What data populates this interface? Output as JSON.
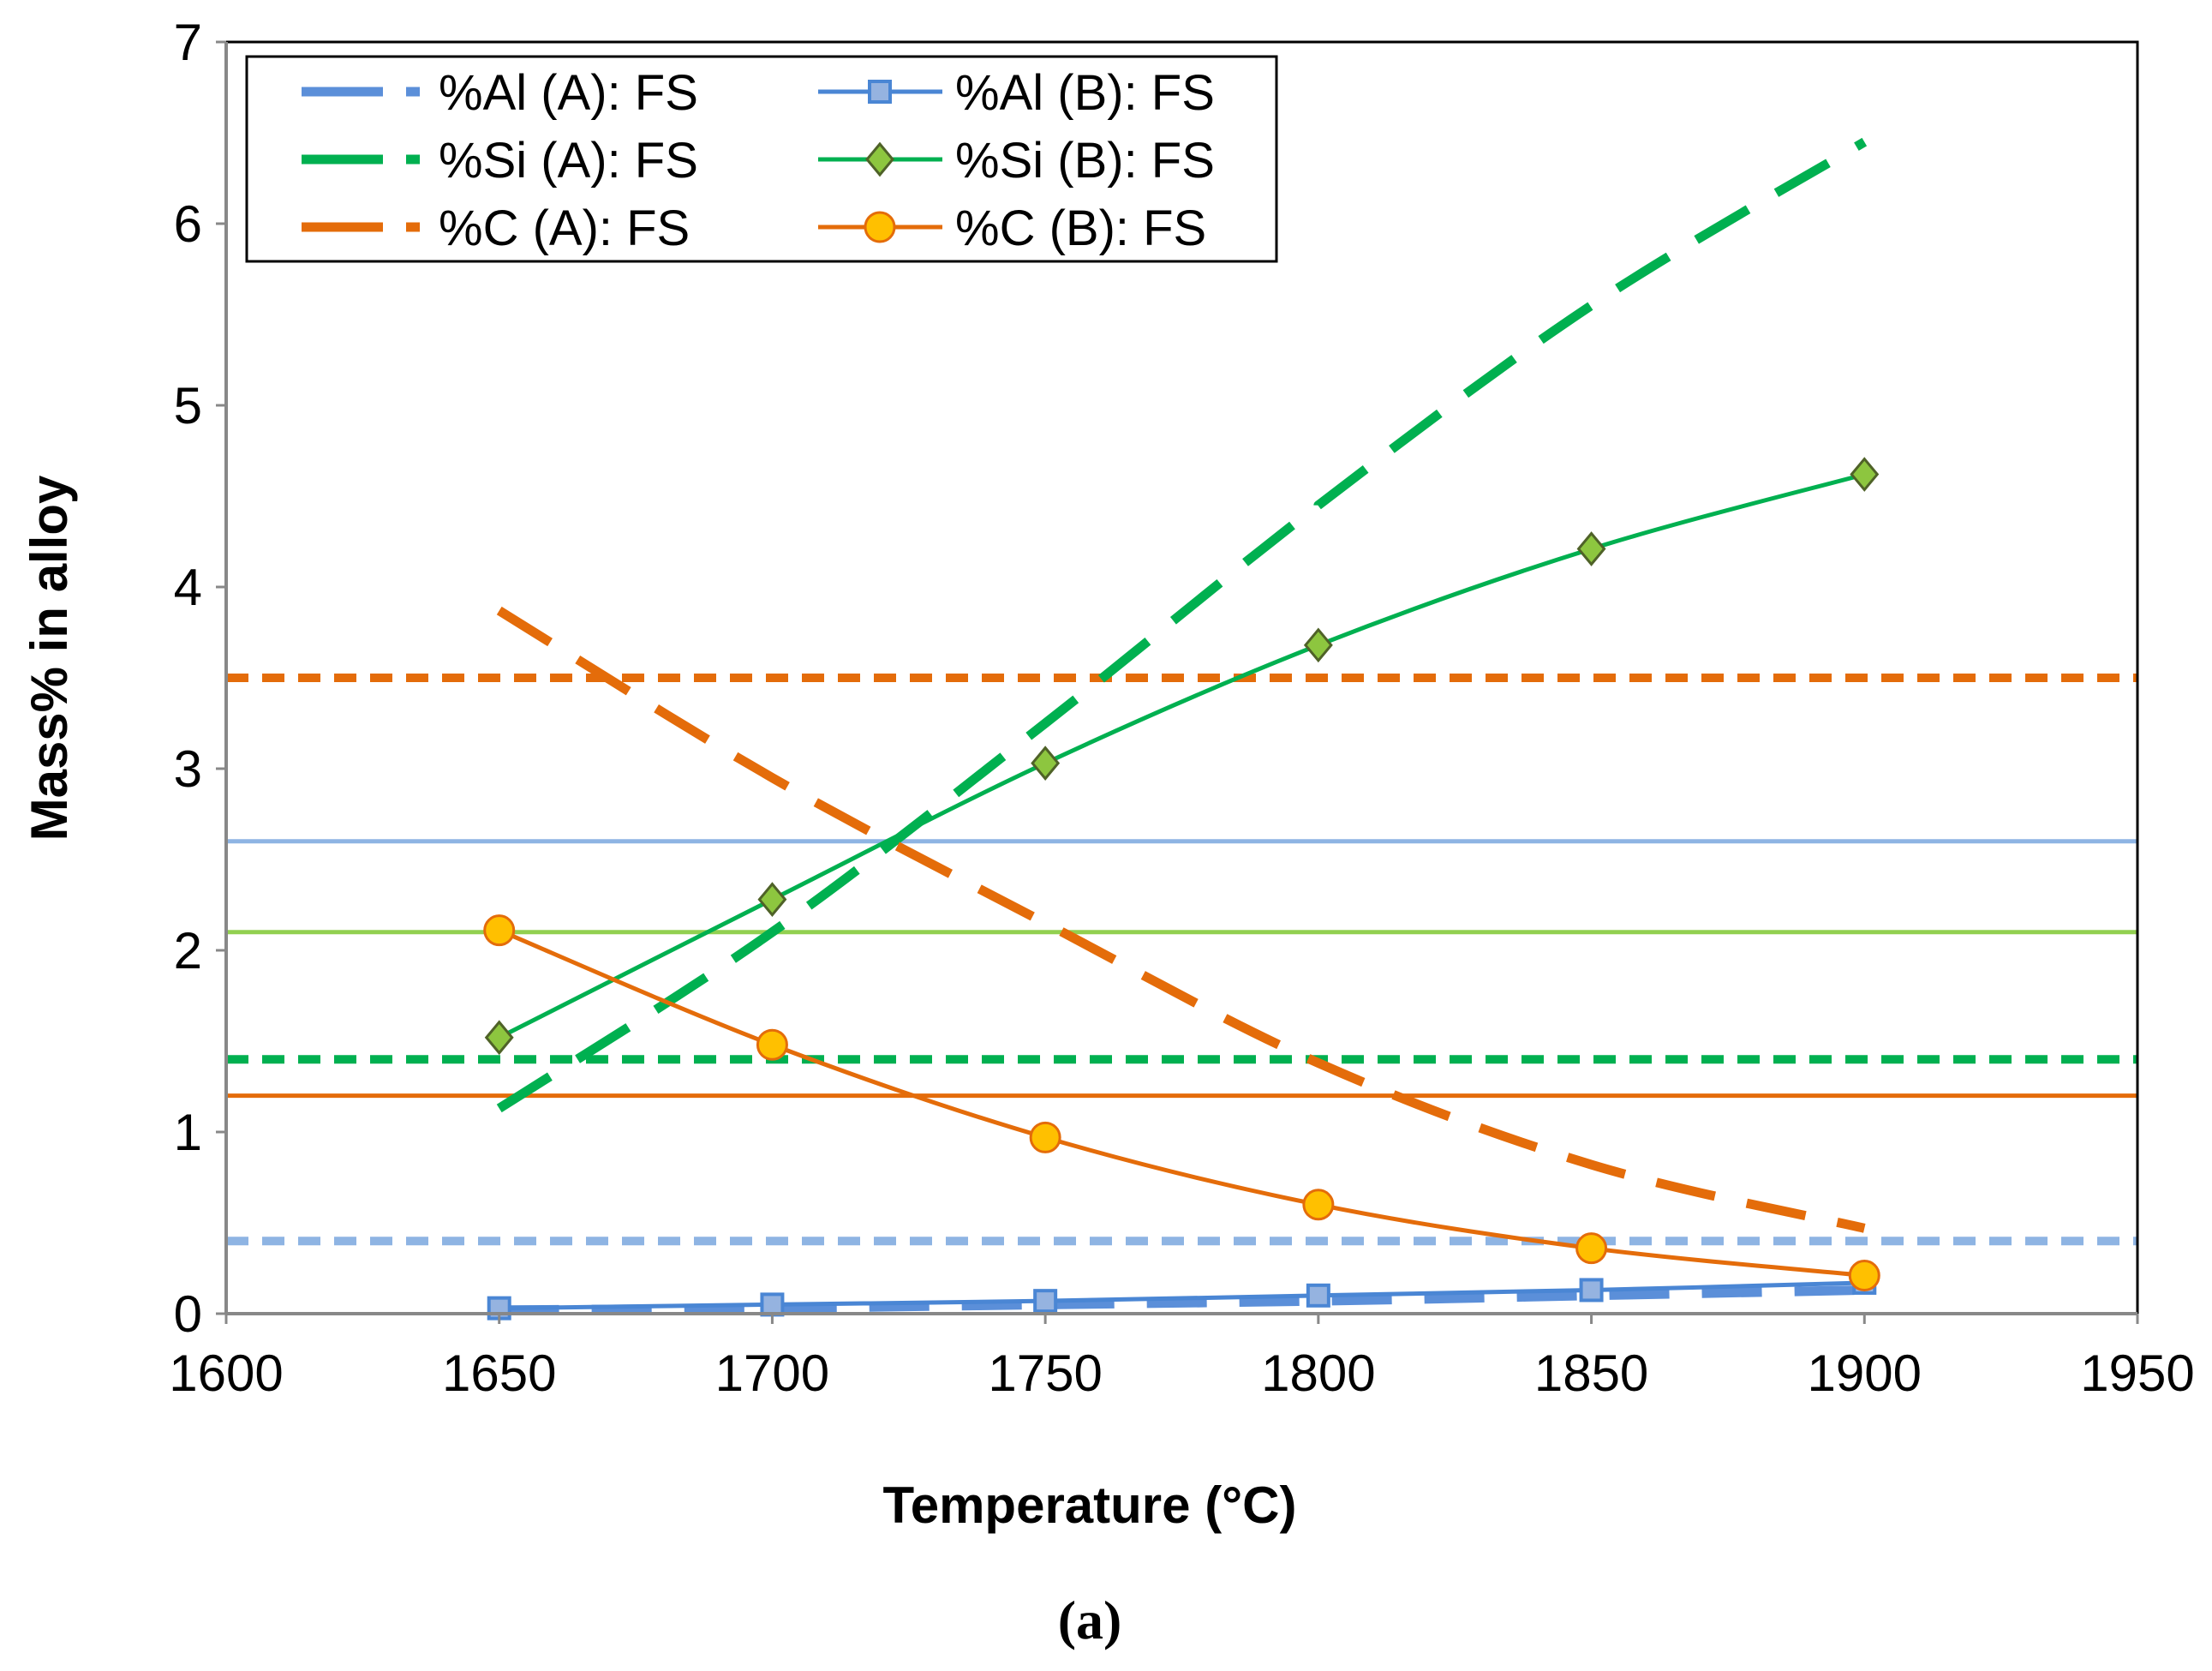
{
  "chart_data": {
    "type": "line",
    "xlabel": "Temperature (°C)",
    "ylabel": "Mass% in alloy",
    "caption": "(a)",
    "xlim": [
      1600,
      1950
    ],
    "ylim": [
      0,
      7
    ],
    "xticks": [
      1600,
      1650,
      1700,
      1750,
      1800,
      1850,
      1900,
      1950
    ],
    "yticks": [
      0,
      1,
      2,
      3,
      4,
      5,
      6,
      7
    ],
    "grid": false,
    "legend_position": "top-left",
    "x": [
      1650,
      1700,
      1750,
      1800,
      1850,
      1900
    ],
    "series": [
      {
        "name": "%Al (A): FS",
        "color": "#5b8fd9",
        "style": "dashed",
        "marker": "none",
        "values": [
          0.02,
          0.03,
          0.05,
          0.07,
          0.1,
          0.13
        ]
      },
      {
        "name": "%Al (B): FS",
        "color": "#4a86d4",
        "style": "solid",
        "marker": "square",
        "marker_fill": "#95b3e0",
        "values": [
          0.03,
          0.05,
          0.07,
          0.1,
          0.13,
          0.17
        ]
      },
      {
        "name": "%Si (A): FS",
        "color": "#00b050",
        "style": "dashed",
        "marker": "none",
        "values": [
          1.13,
          2.1,
          3.25,
          4.45,
          5.55,
          6.45
        ]
      },
      {
        "name": "%Si (B): FS",
        "color": "#00b050",
        "style": "solid",
        "marker": "diamond",
        "marker_fill": "#8dc63f",
        "values": [
          1.52,
          2.28,
          3.03,
          3.68,
          4.21,
          4.62
        ]
      },
      {
        "name": "%C (A): FS",
        "color": "#e46c0a",
        "style": "dashed",
        "marker": "none",
        "values": [
          3.87,
          2.95,
          2.15,
          1.38,
          0.82,
          0.47
        ]
      },
      {
        "name": "%C (B): FS",
        "color": "#e46c0a",
        "style": "solid",
        "marker": "circle",
        "marker_fill": "#ffc000",
        "values": [
          2.11,
          1.48,
          0.97,
          0.6,
          0.36,
          0.21
        ]
      }
    ],
    "reference_lines": [
      {
        "y": 3.5,
        "color": "#e46c0a",
        "style": "short-dash"
      },
      {
        "y": 2.6,
        "color": "#8eb4e3",
        "style": "solid"
      },
      {
        "y": 2.1,
        "color": "#92d050",
        "style": "solid"
      },
      {
        "y": 1.4,
        "color": "#00b050",
        "style": "short-dash"
      },
      {
        "y": 1.2,
        "color": "#e46c0a",
        "style": "solid"
      },
      {
        "y": 0.4,
        "color": "#8eb4e3",
        "style": "short-dash"
      }
    ]
  }
}
